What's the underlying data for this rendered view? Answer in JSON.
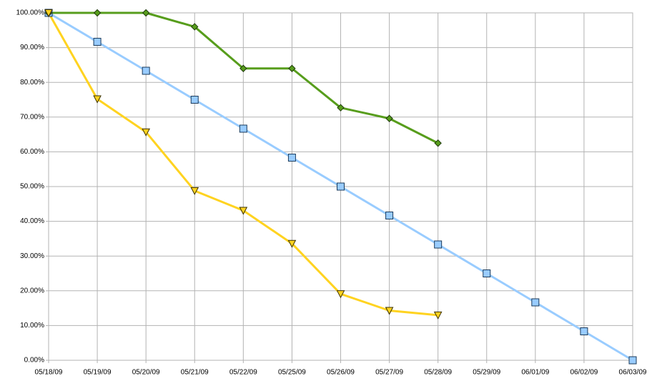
{
  "chart_data": {
    "type": "line",
    "categories": [
      "05/18/09",
      "05/19/09",
      "05/20/09",
      "05/21/09",
      "05/22/09",
      "05/25/09",
      "05/26/09",
      "05/27/09",
      "05/28/09",
      "05/29/09",
      "06/01/09",
      "06/02/09",
      "06/03/09"
    ],
    "series": [
      {
        "color": "#99ccff",
        "marker": "square",
        "values": [
          100,
          91.67,
          83.33,
          75,
          66.67,
          58.33,
          50,
          41.67,
          33.33,
          25,
          16.67,
          8.33,
          0
        ]
      },
      {
        "color": "#579d1c",
        "marker": "diamond",
        "values": [
          100,
          100,
          100,
          96,
          84,
          84,
          72.7,
          69.6,
          62.5,
          null,
          null,
          null,
          null
        ]
      },
      {
        "color": "#ffd320",
        "marker": "triangle-down",
        "values": [
          100,
          75.2,
          65.7,
          48.8,
          43.1,
          33.6,
          19.1,
          14.3,
          13,
          null,
          null,
          null,
          null
        ]
      }
    ],
    "ylim": [
      0,
      100
    ],
    "yticks": [
      {
        "value": 0,
        "label": "0.00%"
      },
      {
        "value": 10,
        "label": "10.00%"
      },
      {
        "value": 20,
        "label": "20.00%"
      },
      {
        "value": 30,
        "label": "30.00%"
      },
      {
        "value": 40,
        "label": "40.00%"
      },
      {
        "value": 50,
        "label": "50.00%"
      },
      {
        "value": 60,
        "label": "60.00%"
      },
      {
        "value": 70,
        "label": "70.00%"
      },
      {
        "value": 80,
        "label": "80.00%"
      },
      {
        "value": 90,
        "label": "90.00%"
      },
      {
        "value": 100,
        "label": "100.00%"
      }
    ],
    "grid": true
  }
}
